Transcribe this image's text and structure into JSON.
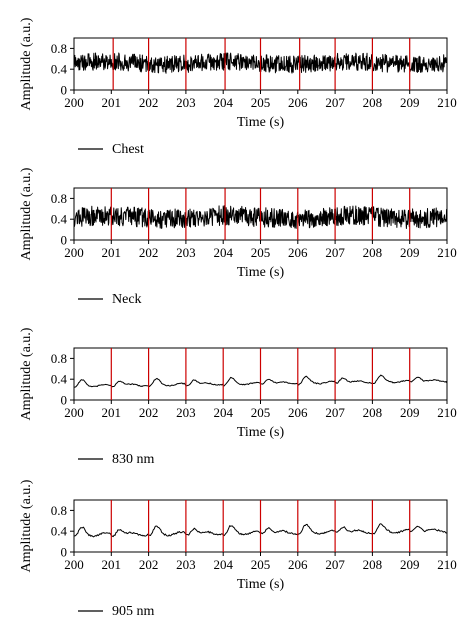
{
  "chart_data": [
    {
      "type": "line",
      "xlabel": "Time (s)",
      "ylabel": "Amplitude (a.u.)",
      "xlim": [
        200,
        210
      ],
      "ylim": [
        0,
        1
      ],
      "xticks": [
        "200",
        "201",
        "202",
        "203",
        "204",
        "205",
        "206",
        "207",
        "208",
        "209",
        "210"
      ],
      "yticks": [
        "0",
        "0.4",
        "0.8"
      ],
      "legend": "Chest",
      "legend_position": "below-left",
      "line_color": "#000000",
      "marker_color": "#cc0000",
      "markers_x": [
        201.05,
        202.0,
        203.0,
        204.05,
        205.0,
        206.05,
        207.0,
        208.0,
        209.0
      ],
      "signal": {
        "kind": "noisy",
        "baseline": 0.52,
        "amplitude": 0.17,
        "wobble": 0.03
      }
    },
    {
      "type": "line",
      "xlabel": "Time (s)",
      "ylabel": "Amplitude (a.u.)",
      "xlim": [
        200,
        210
      ],
      "ylim": [
        0,
        1
      ],
      "xticks": [
        "200",
        "201",
        "202",
        "203",
        "204",
        "205",
        "206",
        "207",
        "208",
        "209",
        "210"
      ],
      "yticks": [
        "0",
        "0.4",
        "0.8"
      ],
      "legend": "Neck",
      "legend_position": "below-left",
      "line_color": "#000000",
      "marker_color": "#cc0000",
      "markers_x": [
        201.0,
        202.0,
        203.0,
        204.05,
        205.0,
        206.0,
        207.0,
        208.0,
        209.0
      ],
      "signal": {
        "kind": "noisy",
        "baseline": 0.44,
        "amplitude": 0.19,
        "wobble": 0.03
      }
    },
    {
      "type": "line",
      "xlabel": "Time (s)",
      "ylabel": "Amplitude (a.u.)",
      "xlim": [
        200,
        210
      ],
      "ylim": [
        0,
        1
      ],
      "xticks": [
        "200",
        "201",
        "202",
        "203",
        "204",
        "205",
        "206",
        "207",
        "208",
        "209",
        "210"
      ],
      "yticks": [
        "0",
        "0.4",
        "0.8"
      ],
      "legend": "830 nm",
      "legend_position": "below-left",
      "line_color": "#000000",
      "marker_color": "#cc0000",
      "markers_x": [
        201.0,
        202.0,
        203.0,
        204.0,
        205.0,
        206.0,
        207.0,
        208.0,
        209.0
      ],
      "signal": {
        "kind": "pulse",
        "baseline": 0.27,
        "trend": 0.1,
        "pulse_height": 0.1,
        "ripple": 0.02
      }
    },
    {
      "type": "line",
      "xlabel": "Time (s)",
      "ylabel": "Amplitude (a.u.)",
      "xlim": [
        200,
        210
      ],
      "ylim": [
        0,
        1
      ],
      "xticks": [
        "200",
        "201",
        "202",
        "203",
        "204",
        "205",
        "206",
        "207",
        "208",
        "209",
        "210"
      ],
      "yticks": [
        "0",
        "0.4",
        "0.8"
      ],
      "legend": "905 nm",
      "legend_position": "below-left",
      "line_color": "#000000",
      "marker_color": "#cc0000",
      "markers_x": [
        201.0,
        202.0,
        203.0,
        204.0,
        205.0,
        206.0,
        207.0,
        208.0,
        209.0
      ],
      "signal": {
        "kind": "pulse",
        "baseline": 0.33,
        "trend": 0.08,
        "pulse_height": 0.12,
        "ripple": 0.03
      }
    }
  ]
}
